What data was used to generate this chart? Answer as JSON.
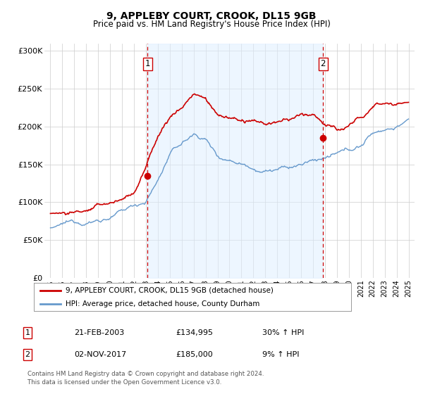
{
  "title": "9, APPLEBY COURT, CROOK, DL15 9GB",
  "subtitle": "Price paid vs. HM Land Registry's House Price Index (HPI)",
  "xlim": [
    1994.5,
    2025.5
  ],
  "ylim": [
    0,
    310000
  ],
  "yticks": [
    0,
    50000,
    100000,
    150000,
    200000,
    250000,
    300000
  ],
  "ytick_labels": [
    "£0",
    "£50K",
    "£100K",
    "£150K",
    "£200K",
    "£250K",
    "£300K"
  ],
  "xticks": [
    1995,
    1996,
    1997,
    1998,
    1999,
    2000,
    2001,
    2002,
    2003,
    2004,
    2005,
    2006,
    2007,
    2008,
    2009,
    2010,
    2011,
    2012,
    2013,
    2014,
    2015,
    2016,
    2017,
    2018,
    2019,
    2020,
    2021,
    2022,
    2023,
    2024,
    2025
  ],
  "sale1_x": 2003.13,
  "sale1_y": 134995,
  "sale2_x": 2017.84,
  "sale2_y": 185000,
  "legend_line1": "9, APPLEBY COURT, CROOK, DL15 9GB (detached house)",
  "legend_line2": "HPI: Average price, detached house, County Durham",
  "annotation1_label": "1",
  "annotation1_date": "21-FEB-2003",
  "annotation1_price": "£134,995",
  "annotation1_hpi": "30% ↑ HPI",
  "annotation2_label": "2",
  "annotation2_date": "02-NOV-2017",
  "annotation2_price": "£185,000",
  "annotation2_hpi": "9% ↑ HPI",
  "footnote": "Contains HM Land Registry data © Crown copyright and database right 2024.\nThis data is licensed under the Open Government Licence v3.0.",
  "line_color_red": "#cc0000",
  "line_color_blue": "#6699cc",
  "fill_color_blue": "#ddeeff",
  "marker_color": "#cc0000",
  "dashed_line_color": "#cc0000",
  "box_color": "#cc0000",
  "background_color": "#ffffff",
  "grid_color": "#cccccc"
}
